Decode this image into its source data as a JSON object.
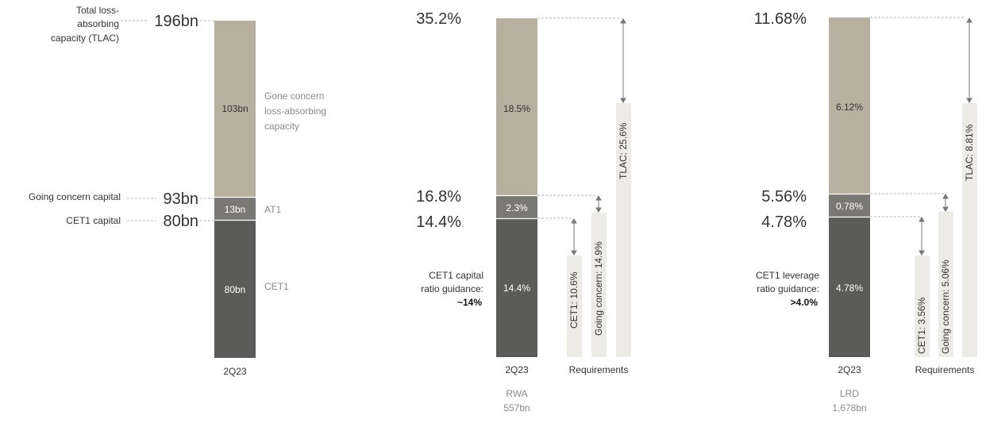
{
  "colors": {
    "gone_concern": "#b8b09f",
    "at1": "#7a7875",
    "cet1": "#5b5b5a",
    "requirement": "#ecebe5",
    "text": "#333333",
    "muted": "#8a8a8a",
    "guide": "#b5b5b5",
    "arrow": "#777777"
  },
  "chart_data": [
    {
      "type": "bar",
      "stacked": true,
      "category": "2Q23",
      "unit": "bn",
      "series": [
        {
          "name": "CET1",
          "value": 80,
          "label": "80bn"
        },
        {
          "name": "AT1",
          "value": 13,
          "label": "13bn"
        },
        {
          "name": "Gone concern loss-absorbing capacity",
          "value": 103,
          "label": "103bn"
        }
      ],
      "levels": [
        {
          "name": "Total loss-absorbing capacity (TLAC)",
          "value": 196,
          "label": "196bn"
        },
        {
          "name": "Going concern capital",
          "value": 93,
          "label": "93bn"
        },
        {
          "name": "CET1 capital",
          "value": 80,
          "label": "80bn"
        }
      ]
    },
    {
      "type": "bar",
      "stacked": true,
      "category": "2Q23",
      "unit": "%",
      "denominator_label": "RWA",
      "denominator_value": "557bn",
      "series": [
        {
          "name": "CET1",
          "value": 14.4,
          "label": "14.4%"
        },
        {
          "name": "AT1",
          "value": 2.3,
          "label": "2.3%"
        },
        {
          "name": "Gone concern loss-absorbing capacity",
          "value": 18.5,
          "label": "18.5%"
        }
      ],
      "levels": [
        {
          "value": 35.2,
          "label": "35.2%"
        },
        {
          "value": 16.8,
          "label": "16.8%"
        },
        {
          "value": 14.4,
          "label": "14.4%"
        }
      ],
      "guidance": {
        "line1": "CET1 capital",
        "line2": "ratio guidance:",
        "value": "~14%"
      },
      "requirements_label": "Requirements",
      "requirements": [
        {
          "name": "CET1",
          "value": 10.6,
          "label": "CET1: 10.6%"
        },
        {
          "name": "Going concern",
          "value": 14.9,
          "label": "Going concern: 14.9%"
        },
        {
          "name": "TLAC",
          "value": 25.6,
          "label": "TLAC: 25.6%"
        }
      ]
    },
    {
      "type": "bar",
      "stacked": true,
      "category": "2Q23",
      "unit": "%",
      "denominator_label": "LRD",
      "denominator_value": "1,678bn",
      "series": [
        {
          "name": "CET1",
          "value": 4.78,
          "label": "4.78%"
        },
        {
          "name": "AT1",
          "value": 0.78,
          "label": "0.78%"
        },
        {
          "name": "Gone concern loss-absorbing capacity",
          "value": 6.12,
          "label": "6.12%"
        }
      ],
      "levels": [
        {
          "value": 11.68,
          "label": "11.68%"
        },
        {
          "value": 5.56,
          "label": "5.56%"
        },
        {
          "value": 4.78,
          "label": "4.78%"
        }
      ],
      "guidance": {
        "line1": "CET1 leverage",
        "line2": "ratio guidance:",
        "value": ">4.0%"
      },
      "requirements_label": "Requirements",
      "requirements": [
        {
          "name": "CET1",
          "value": 3.56,
          "label": "CET1: 3.56%"
        },
        {
          "name": "Going concern",
          "value": 5.06,
          "label": "Going concern: 5.06%"
        },
        {
          "name": "TLAC",
          "value": 8.81,
          "label": "TLAC: 8.81%"
        }
      ]
    }
  ],
  "panel1": {
    "left_labels": {
      "tlac_line1": "Total loss-",
      "tlac_line2": "absorbing",
      "tlac_line3": "capacity (TLAC)",
      "going_concern": "Going concern capital",
      "cet1": "CET1 capital"
    },
    "right_labels": {
      "gone_line1": "Gone concern",
      "gone_line2": "loss-absorbing",
      "gone_line3": "capacity",
      "at1": "AT1",
      "cet1": "CET1"
    }
  }
}
